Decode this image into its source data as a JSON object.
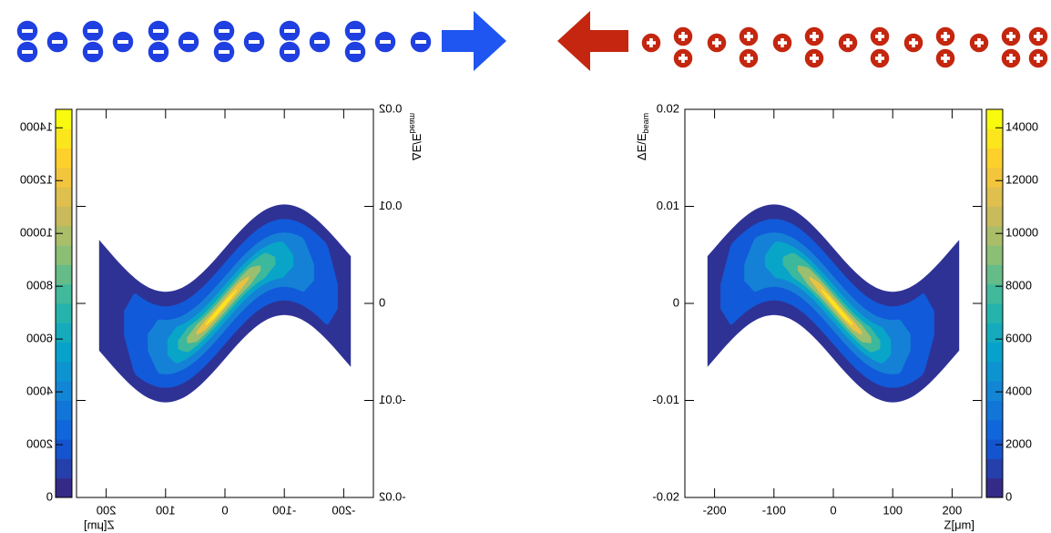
{
  "chart_data": [
    {
      "type": "histogram2d",
      "xlabel": "Z[μm]",
      "ylabel": "ΔE/E",
      "ylabel_subscript": "beam",
      "xlim": [
        -250,
        250
      ],
      "xticks": [
        -200,
        -100,
        0,
        100,
        200
      ],
      "ylim": [
        -0.02,
        0.02
      ],
      "yticks": [
        -0.02,
        -0.01,
        0,
        0.01,
        0.02
      ],
      "zlim": [
        0,
        14700
      ],
      "zticks": [
        0,
        2000,
        4000,
        6000,
        8000,
        10000,
        12000,
        14000
      ],
      "mirrored": false
    },
    {
      "type": "histogram2d",
      "xlabel": "Z[μm]",
      "ylabel": "ΔE/E",
      "ylabel_subscript": "beam",
      "xlim": [
        -250,
        250
      ],
      "xticks": [
        -200,
        -100,
        0,
        100,
        200
      ],
      "ylim": [
        -0.02,
        0.02
      ],
      "yticks": [
        -0.02,
        -0.01,
        0,
        0.01,
        0.02
      ],
      "zlim": [
        0,
        14700
      ],
      "zticks": [
        0,
        2000,
        4000,
        6000,
        8000,
        10000,
        12000,
        14000
      ],
      "mirrored": true
    }
  ]
}
